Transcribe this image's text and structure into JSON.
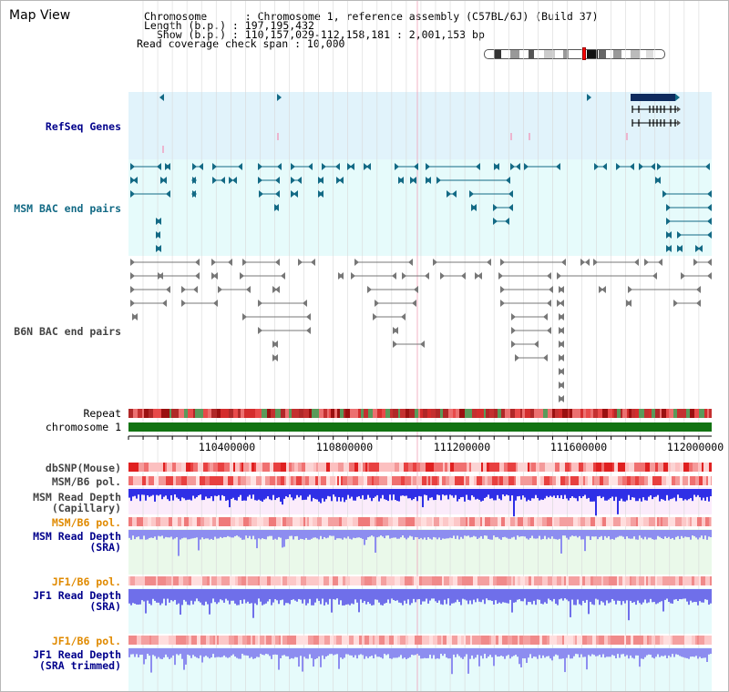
{
  "title": "Map View",
  "info": {
    "line1": "Chromosome      : Chromosome 1, reference assembly (C57BL/6J) (Build 37)",
    "line2": "Length (b.p.) : 197,195,432",
    "line3": "  Show (b.p.) : 110,157,029-112,158,181 : 2,001,153 bp",
    "line4": "Read coverage check span : 10,000"
  },
  "tracks": {
    "refseq": "RefSeq Genes",
    "msm_bac": "MSM BAC end pairs",
    "b6n_bac": "B6N BAC end pairs",
    "repeat": "Repeat",
    "chromosome": "chromosome 1",
    "dbsnp": "dbSNP(Mouse)",
    "msm_pol1": "MSM/B6 pol.",
    "msm_depth_cap_1": "MSM Read Depth",
    "msm_depth_cap_2": "(Capillary)",
    "msm_pol2": "MSM/B6 pol.",
    "msm_depth_sra_1": "MSM Read Depth",
    "msm_depth_sra_2": "(SRA)",
    "jf1_pol1": "JF1/B6 pol.",
    "jf1_depth_1": "JF1 Read Depth",
    "jf1_depth_2": "(SRA)",
    "jf1_pol2": "JF1/B6 pol.",
    "jf1_trim_1": "JF1 Read Depth",
    "jf1_trim_2": "(SRA trimmed)"
  },
  "axis": {
    "ticks": [
      "110400000",
      "110800000",
      "111200000",
      "111600000",
      "112000000"
    ]
  },
  "colors": {
    "refseq_bg": "#e1f3fb",
    "msm_bg": "#e6fbfb",
    "repeat_red": "#d83030",
    "chrom_green": "#127312",
    "depth_blue": "#2f2fe6",
    "depth_sra": "#8d8df0"
  }
}
